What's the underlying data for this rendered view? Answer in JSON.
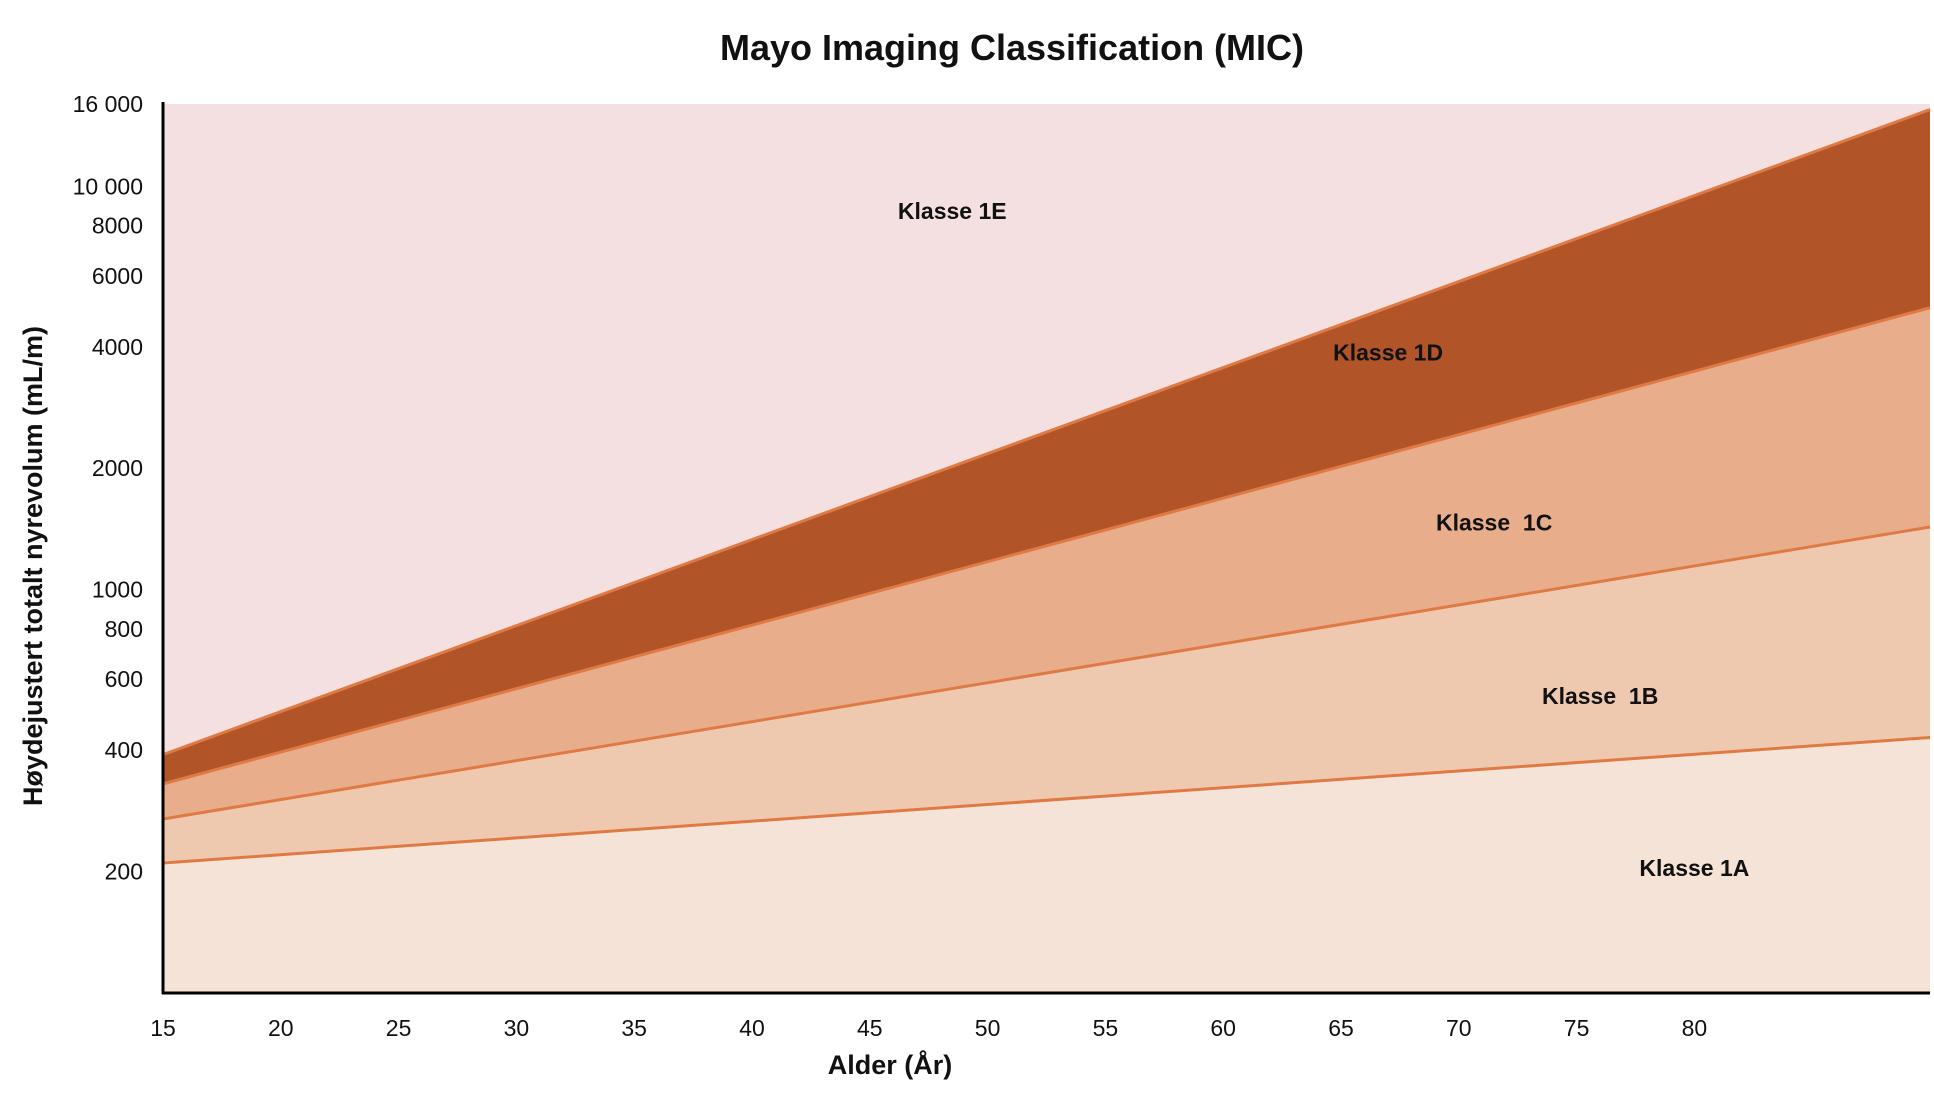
{
  "chart_data": {
    "type": "area",
    "title": "Mayo Imaging Classification (MIC)",
    "xlabel": "Alder (År)",
    "ylabel": "Høydejustert totalt nyrevolum (mL/m)",
    "y_scale": "log",
    "x_range": [
      15,
      90
    ],
    "y_range": [
      100,
      16000
    ],
    "x_ticks": [
      {
        "value": 15,
        "label": "15"
      },
      {
        "value": 20,
        "label": "20"
      },
      {
        "value": 25,
        "label": "25"
      },
      {
        "value": 30,
        "label": "30"
      },
      {
        "value": 35,
        "label": "35"
      },
      {
        "value": 40,
        "label": "40"
      },
      {
        "value": 45,
        "label": "45"
      },
      {
        "value": 50,
        "label": "50"
      },
      {
        "value": 55,
        "label": "55"
      },
      {
        "value": 60,
        "label": "60"
      },
      {
        "value": 65,
        "label": "65"
      },
      {
        "value": 70,
        "label": "70"
      },
      {
        "value": 75,
        "label": "75"
      },
      {
        "value": 80,
        "label": "80"
      }
    ],
    "y_ticks": [
      {
        "value": 200,
        "label": "200"
      },
      {
        "value": 400,
        "label": "400"
      },
      {
        "value": 600,
        "label": "600"
      },
      {
        "value": 800,
        "label": "800"
      },
      {
        "value": 1000,
        "label": "1000"
      },
      {
        "value": 2000,
        "label": "2000"
      },
      {
        "value": 4000,
        "label": "4000"
      },
      {
        "value": 6000,
        "label": "6000"
      },
      {
        "value": 8000,
        "label": "8000"
      },
      {
        "value": 10000,
        "label": "10 000"
      },
      {
        "value": 16000,
        "label": "16 000"
      }
    ],
    "boundaries": [
      {
        "between": "1A/1B",
        "x": [
          15,
          90
        ],
        "y": [
          210,
          430
        ],
        "color": "#e07a45"
      },
      {
        "between": "1B/1C",
        "x": [
          15,
          90
        ],
        "y": [
          270,
          1430
        ],
        "color": "#e07a45"
      },
      {
        "between": "1C/1D",
        "x": [
          15,
          90
        ],
        "y": [
          330,
          5000
        ],
        "color": "#e07a45"
      },
      {
        "between": "1D/1E",
        "x": [
          15,
          90
        ],
        "y": [
          390,
          15500
        ],
        "color": "#e07a45"
      }
    ],
    "bands": [
      {
        "name": "Klasse 1A",
        "color": "#f5e3d8",
        "label_at": {
          "x": 80,
          "y": 195
        }
      },
      {
        "name": "Klasse  1B",
        "color": "#efc8b0",
        "label_at": {
          "x": 76,
          "y": 520
        }
      },
      {
        "name": "Klasse  1C",
        "color": "#e8ad8b",
        "label_at": {
          "x": 71.5,
          "y": 1400
        }
      },
      {
        "name": "Klasse 1D",
        "color": "#b15428",
        "label_at": {
          "x": 67,
          "y": 3700
        }
      },
      {
        "name": "Klasse 1E",
        "color": "#f4e0e0",
        "label_at": {
          "x": 48.5,
          "y": 8300
        }
      }
    ],
    "grid": false,
    "legend": "none"
  }
}
